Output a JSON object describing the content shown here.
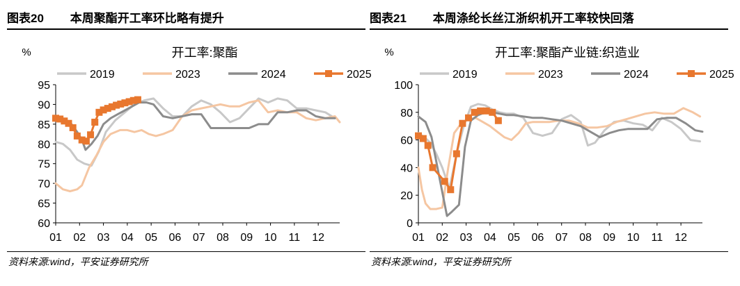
{
  "panels": [
    {
      "figure_no": "图表20",
      "caption": "本周聚酯开工率环比略有提升",
      "source": "资料来源:wind，平安证券研究所"
    },
    {
      "figure_no": "图表21",
      "caption": "本周涤纶长丝江浙织机开工率较快回落",
      "source": "资料来源:wind，平安证券研究所"
    }
  ],
  "chart_data": [
    {
      "type": "line",
      "title": "开工率:聚酯",
      "ylabel": "%",
      "ylim": [
        60,
        95
      ],
      "yticks": [
        60,
        65,
        70,
        75,
        80,
        85,
        90,
        95
      ],
      "xlim": [
        1,
        12.9
      ],
      "x_ticks": [
        "01",
        "02",
        "03",
        "04",
        "05",
        "06",
        "07",
        "08",
        "09",
        "10",
        "11",
        "12"
      ],
      "legend_position": "top",
      "series": [
        {
          "name": "2019",
          "color": "#c8c8c8",
          "x": [
            1,
            1.3,
            1.6,
            1.9,
            2.2,
            2.5,
            2.8,
            3.1,
            3.5,
            3.9,
            4.3,
            4.7,
            5.1,
            5.5,
            5.9,
            6.3,
            6.7,
            7.1,
            7.5,
            7.9,
            8.3,
            8.7,
            9.1,
            9.5,
            9.9,
            10.3,
            10.7,
            11.1,
            11.5,
            11.9,
            12.3,
            12.7
          ],
          "y": [
            80.5,
            80,
            78.5,
            76,
            75,
            74.5,
            78,
            83,
            86,
            88,
            90,
            91,
            91.5,
            89,
            87,
            87,
            89.5,
            91,
            90,
            88,
            85.5,
            86.5,
            89,
            91.5,
            90.5,
            91.5,
            91,
            89,
            89,
            88.5,
            88,
            86.5
          ]
        },
        {
          "name": "2023",
          "color": "#f5c6a2",
          "x": [
            1,
            1.3,
            1.6,
            1.9,
            2.1,
            2.4,
            2.7,
            3.0,
            3.3,
            3.7,
            4.0,
            4.3,
            4.6,
            4.9,
            5.2,
            5.5,
            5.9,
            6.3,
            6.7,
            7.1,
            7.5,
            7.9,
            8.3,
            8.7,
            9.1,
            9.5,
            9.9,
            10.3,
            10.7,
            11.1,
            11.5,
            11.9,
            12.3,
            12.7,
            12.9
          ],
          "y": [
            70,
            68.5,
            68,
            68.5,
            69.5,
            74,
            77,
            80.5,
            82.5,
            83.5,
            83.5,
            83,
            83.5,
            82.5,
            82,
            82.5,
            83.5,
            87,
            88.5,
            89,
            89.5,
            90,
            89.5,
            89.5,
            90.5,
            91,
            88,
            88.5,
            88,
            88,
            86.5,
            86,
            86.5,
            87,
            85.5
          ]
        },
        {
          "name": "2024",
          "color": "#8c8c8c",
          "x": [
            1,
            1.3,
            1.6,
            1.9,
            2.1,
            2.25,
            2.5,
            2.75,
            3.0,
            3.3,
            3.6,
            3.9,
            4.2,
            4.5,
            4.8,
            5.1,
            5.5,
            5.9,
            6.3,
            6.7,
            7.1,
            7.5,
            7.9,
            8.3,
            8.7,
            9.1,
            9.5,
            9.9,
            10.3,
            10.7,
            11.1,
            11.5,
            11.9,
            12.3,
            12.7
          ],
          "y": [
            86.5,
            86,
            85.5,
            83,
            81,
            78.5,
            80,
            82,
            85,
            86.5,
            87.5,
            88.5,
            89.5,
            90.5,
            90.5,
            90,
            87,
            86.5,
            87,
            87.5,
            87.5,
            84,
            84,
            84,
            84,
            84,
            85,
            85,
            88,
            88,
            88.5,
            88.5,
            87,
            86.5,
            86.5
          ]
        },
        {
          "name": "2025",
          "color": "#e8772e",
          "marker": "square",
          "x": [
            1,
            1.18,
            1.36,
            1.54,
            1.72,
            1.9,
            2.1,
            2.28,
            2.46,
            2.64,
            2.82,
            3.0,
            3.18,
            3.36,
            3.54,
            3.72,
            3.9,
            4.08,
            4.26,
            4.44
          ],
          "y": [
            86.5,
            86.3,
            85.8,
            85.2,
            84.1,
            82,
            81,
            80.7,
            82.3,
            85.5,
            88,
            88.6,
            89,
            89.4,
            89.8,
            90.1,
            90.4,
            90.7,
            91,
            91.2
          ]
        }
      ]
    },
    {
      "type": "line",
      "title": "开工率:聚酯产业链:织造业",
      "ylabel": "%",
      "ylim": [
        0,
        100
      ],
      "yticks": [
        0,
        20,
        40,
        60,
        80,
        100
      ],
      "xlim": [
        1,
        12.9
      ],
      "x_ticks": [
        "01",
        "02",
        "03",
        "04",
        "05",
        "06",
        "07",
        "08",
        "09",
        "10",
        "11",
        "12"
      ],
      "legend_position": "top",
      "series": [
        {
          "name": "2019",
          "color": "#c8c8c8",
          "x": [
            1,
            1.25,
            1.5,
            1.75,
            2.0,
            2.3,
            2.6,
            2.9,
            3.2,
            3.5,
            3.8,
            4.1,
            4.4,
            4.7,
            5.0,
            5.4,
            5.8,
            6.2,
            6.6,
            7.0,
            7.4,
            7.8,
            8.1,
            8.4,
            8.8,
            9.2,
            9.6,
            10.0,
            10.4,
            10.8,
            11.2,
            11.6,
            12.0,
            12.4,
            12.8
          ],
          "y": [
            65,
            62,
            58,
            50,
            40,
            25,
            50,
            70,
            84,
            86,
            85,
            82,
            80,
            79,
            79,
            76,
            65,
            63,
            65,
            75,
            78,
            73,
            56,
            58,
            67,
            73,
            74,
            72,
            71,
            67,
            76,
            73,
            68,
            60,
            59
          ]
        },
        {
          "name": "2023",
          "color": "#f5c6a2",
          "x": [
            1,
            1.15,
            1.3,
            1.5,
            1.75,
            2.0,
            2.25,
            2.5,
            2.8,
            3.1,
            3.4,
            3.7,
            4.0,
            4.3,
            4.6,
            4.9,
            5.2,
            5.5,
            5.8,
            6.1,
            6.5,
            6.9,
            7.3,
            7.7,
            8.1,
            8.5,
            8.9,
            9.3,
            9.7,
            10.1,
            10.5,
            10.9,
            11.3,
            11.7,
            12.1,
            12.5,
            12.8
          ],
          "y": [
            40,
            24,
            14,
            10,
            10,
            11,
            40,
            65,
            72,
            75,
            76,
            73,
            70,
            66,
            62,
            60,
            65,
            72,
            73,
            73,
            73,
            74,
            74,
            72,
            69,
            69,
            70,
            73,
            75,
            77,
            79,
            80,
            79,
            79,
            83,
            80,
            77
          ]
        },
        {
          "name": "2024",
          "color": "#8c8c8c",
          "x": [
            1,
            1.3,
            1.55,
            1.8,
            2.05,
            2.2,
            2.4,
            2.7,
            2.95,
            3.2,
            3.5,
            3.8,
            4.1,
            4.4,
            4.7,
            5.0,
            5.4,
            5.8,
            6.2,
            6.6,
            7.0,
            7.4,
            7.8,
            8.2,
            8.6,
            9.0,
            9.4,
            9.8,
            10.2,
            10.6,
            11.0,
            11.4,
            11.8,
            12.2,
            12.6,
            12.9
          ],
          "y": [
            77,
            73,
            62,
            40,
            18,
            5,
            8,
            13,
            55,
            74,
            78,
            80,
            80,
            79,
            78,
            78,
            77,
            76,
            76,
            75,
            74,
            72,
            70,
            66,
            62,
            65,
            67,
            68,
            68,
            68,
            75,
            76,
            76,
            72,
            67,
            66
          ]
        },
        {
          "name": "2025",
          "color": "#e8772e",
          "marker": "square",
          "x": [
            1,
            1.2,
            1.4,
            1.6,
            2.1,
            2.35,
            2.6,
            2.85,
            3.1,
            3.35,
            3.6,
            3.85,
            4.1,
            4.35
          ],
          "y": [
            63,
            61,
            56,
            40,
            30,
            24,
            50,
            72,
            76,
            80,
            81,
            81,
            80,
            74
          ]
        }
      ]
    }
  ]
}
